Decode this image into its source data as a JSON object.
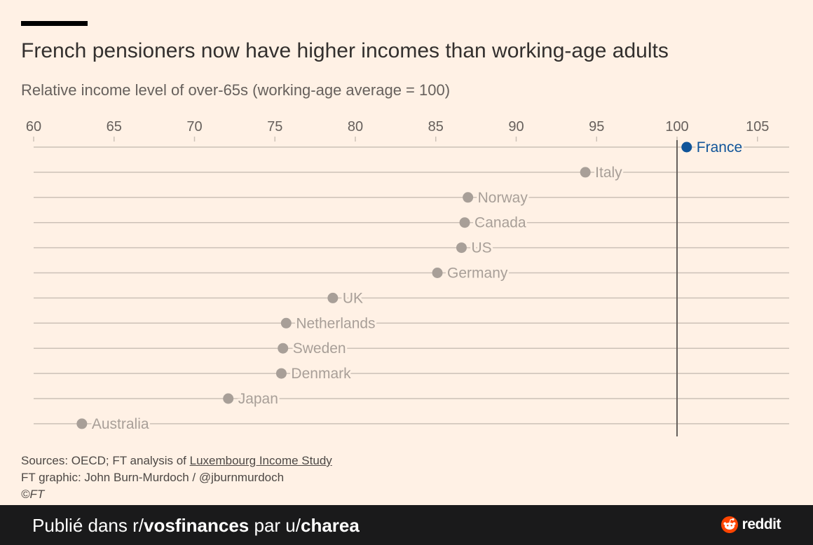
{
  "title": "French pensioners now have higher incomes than working-age adults",
  "subtitle": "Relative income level of over-65s (working-age average = 100)",
  "sources": {
    "prefix": "Sources: OECD; FT analysis of ",
    "link": "Luxembourg Income Study",
    "graphic": "FT graphic: John Burn-Murdoch / @jburnmurdoch",
    "copyright": "©FT"
  },
  "footer": {
    "published": "Publié dans r/",
    "subreddit": "vosfinances",
    "by": " par u/",
    "user": "charea",
    "brand": "reddit"
  },
  "colors": {
    "background": "#fff1e5",
    "highlight": "#0f5499",
    "muted": "#a89f98",
    "gridline": "#ccc1b7",
    "reference_line": "#66605c"
  },
  "chart_data": {
    "type": "scatter",
    "orientation": "horizontal-dot",
    "xlim": [
      60,
      107
    ],
    "x_ticks": [
      60,
      65,
      70,
      75,
      80,
      85,
      90,
      95,
      100,
      105
    ],
    "reference_line": 100,
    "highlight": "France",
    "points": [
      {
        "label": "France",
        "value": 100.6
      },
      {
        "label": "Italy",
        "value": 94.3
      },
      {
        "label": "Norway",
        "value": 87.0
      },
      {
        "label": "Canada",
        "value": 86.8
      },
      {
        "label": "US",
        "value": 86.6
      },
      {
        "label": "Germany",
        "value": 85.1
      },
      {
        "label": "UK",
        "value": 78.6
      },
      {
        "label": "Netherlands",
        "value": 75.7
      },
      {
        "label": "Sweden",
        "value": 75.5
      },
      {
        "label": "Denmark",
        "value": 75.4
      },
      {
        "label": "Japan",
        "value": 72.1
      },
      {
        "label": "Australia",
        "value": 63.0
      }
    ]
  }
}
